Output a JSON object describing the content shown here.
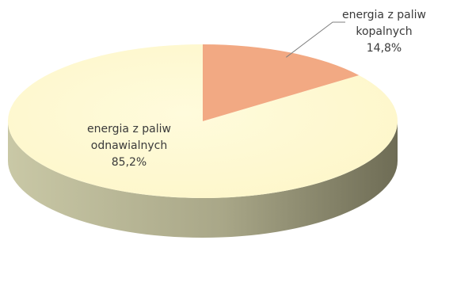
{
  "chart_data": {
    "type": "pie",
    "title": "",
    "categories": [
      "energia z paliw kopalnych",
      "energia z paliw odnawialnych"
    ],
    "values": [
      14.8,
      85.2
    ],
    "unit": "%",
    "labels": [
      {
        "line1": "energia z paliw",
        "line2": "kopalnych",
        "value_text": "14,8%"
      },
      {
        "line1": "energia z paliw",
        "line2": "odnawialnych",
        "value_text": "85,2%"
      }
    ],
    "colors": {
      "fossil_top": "#f2a983",
      "fossil_side": "#b8735a",
      "renewable_top": "#fdf6c8",
      "renewable_side_light": "#c9c8a6",
      "renewable_side_dark": "#6e6c55",
      "leader_line": "#7f7f7f"
    },
    "legend": "none",
    "style": "3d-pie"
  }
}
